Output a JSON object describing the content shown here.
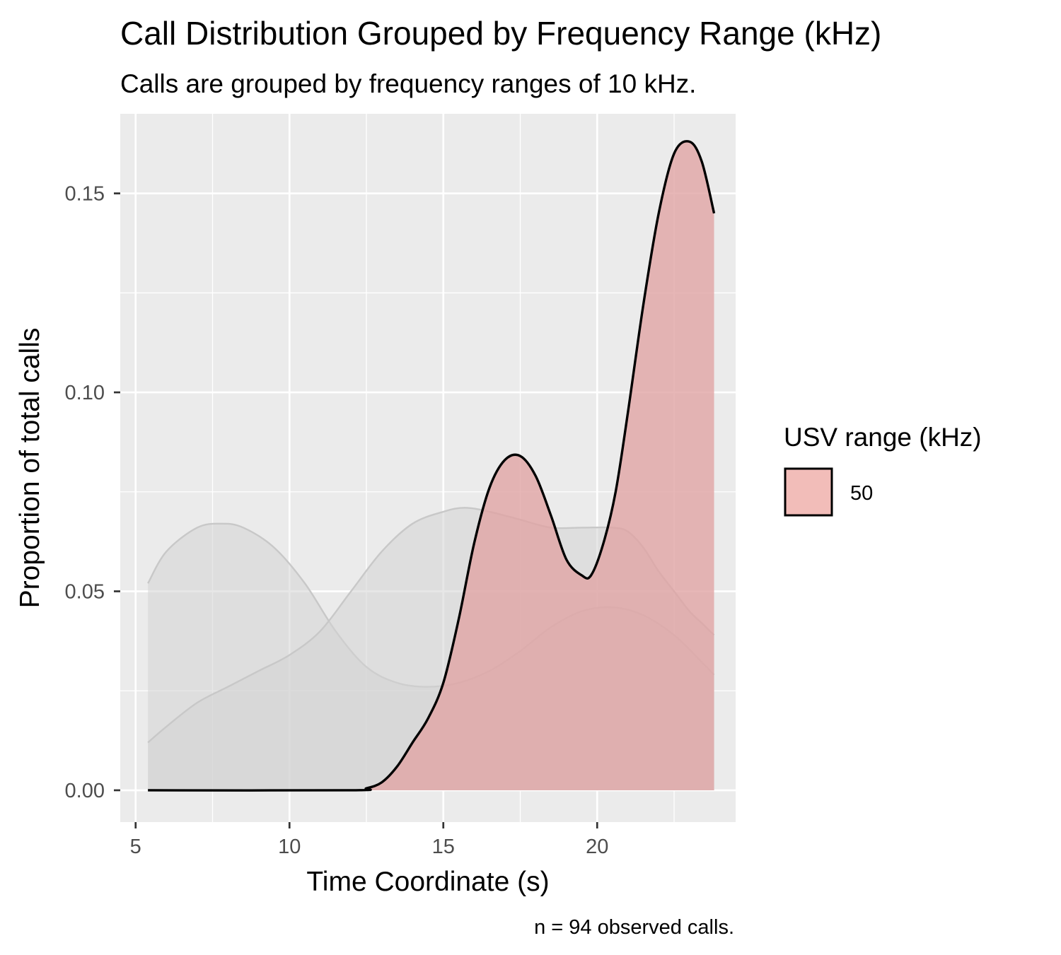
{
  "chart_data": {
    "type": "area",
    "title": "Call Distribution Grouped by Frequency Range (kHz)",
    "subtitle": "Calls are grouped by frequency ranges of 10 kHz.",
    "xlabel": "Time Coordinate (s)",
    "ylabel": "Proportion of total calls",
    "caption": "n = 94 observed calls.",
    "xlim": [
      4.5,
      24.5
    ],
    "ylim": [
      -0.008,
      0.17
    ],
    "x_ticks": [
      5,
      10,
      15,
      20
    ],
    "x_tick_labels": [
      "5",
      "10",
      "15",
      "20"
    ],
    "y_ticks": [
      0,
      0.05,
      0.1,
      0.15
    ],
    "y_tick_labels": [
      "0.00",
      "0.05",
      "0.10",
      "0.15"
    ],
    "grid": true,
    "legend": {
      "title": "USV range (kHz)",
      "position": "right",
      "entries": [
        {
          "label": "50",
          "color": "#f2bdb9"
        }
      ]
    },
    "series": [
      {
        "name": "50",
        "highlighted": true,
        "fill": "#e0a3a3",
        "stroke": "#000000",
        "x": [
          5.4,
          12.0,
          12.5,
          13.0,
          13.5,
          14.0,
          14.5,
          15.0,
          15.5,
          16.0,
          16.5,
          17.0,
          17.5,
          18.0,
          18.5,
          19.0,
          19.5,
          19.8,
          20.2,
          20.6,
          21.0,
          21.5,
          22.0,
          22.5,
          23.0,
          23.4,
          23.8
        ],
        "y": [
          0.0,
          0.0,
          0.0005,
          0.002,
          0.006,
          0.012,
          0.018,
          0.027,
          0.043,
          0.062,
          0.076,
          0.083,
          0.084,
          0.079,
          0.069,
          0.058,
          0.054,
          0.054,
          0.062,
          0.075,
          0.095,
          0.122,
          0.145,
          0.16,
          0.163,
          0.158,
          0.145
        ]
      },
      {
        "highlighted": false,
        "fill": "#d3d3d3",
        "stroke": "#c8c8c8",
        "x": [
          5.4,
          6.0,
          7.0,
          7.8,
          8.5,
          9.5,
          10.5,
          11.5,
          12.5,
          13.5,
          14.5,
          15.5,
          16.5,
          17.5,
          18.5,
          19.5,
          20.5,
          21.5,
          22.5,
          23.3,
          23.8
        ],
        "y": [
          0.052,
          0.06,
          0.066,
          0.067,
          0.066,
          0.061,
          0.052,
          0.04,
          0.031,
          0.027,
          0.026,
          0.027,
          0.03,
          0.035,
          0.041,
          0.045,
          0.046,
          0.044,
          0.039,
          0.033,
          0.029
        ]
      },
      {
        "highlighted": false,
        "fill": "#d3d3d3",
        "stroke": "#c8c8c8",
        "x": [
          5.4,
          6.0,
          7.0,
          8.0,
          9.0,
          10.0,
          11.0,
          12.0,
          13.0,
          14.0,
          15.0,
          15.7,
          16.5,
          17.5,
          18.5,
          19.5,
          20.5,
          21.0,
          21.5,
          22.0,
          22.5,
          23.0,
          23.4,
          23.8
        ],
        "y": [
          0.012,
          0.016,
          0.022,
          0.026,
          0.03,
          0.034,
          0.04,
          0.05,
          0.06,
          0.067,
          0.07,
          0.071,
          0.07,
          0.068,
          0.066,
          0.066,
          0.066,
          0.065,
          0.061,
          0.055,
          0.05,
          0.045,
          0.042,
          0.039
        ]
      }
    ]
  }
}
